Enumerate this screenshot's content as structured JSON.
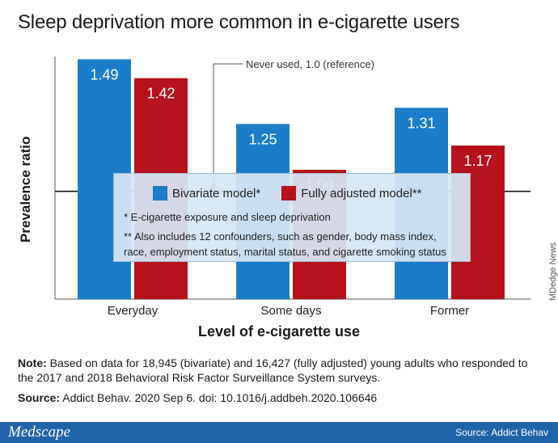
{
  "title": "Sleep deprivation more common in e-cigarette users",
  "credit": "MDedge News",
  "note": {
    "label": "Note:",
    "text": " Based on data for 18,945 (bivariate) and 16,427 (fully adjusted) young adults who responded to the 2017 and 2018 Behavioral Risk Factor Surveillance System surveys."
  },
  "source": {
    "label": "Source:",
    "text": " Addict Behav. 2020 Sep 6. doi: 10.1016/j.addbeh.2020.106646"
  },
  "footer": {
    "logo": "Medscape",
    "source": "Source: Addict Behav"
  },
  "legend": {
    "footnote1": "* E-cigarette exposure and sleep deprivation",
    "footnote2a": "** Also includes 12 confounders, such as gender, body mass index,",
    "footnote2b": "race, employment status, marital status, and cigarette smoking status"
  },
  "colors": {
    "bivariate": "#1b7dc9",
    "adjusted": "#b5121b",
    "footer": "#1f64a8"
  },
  "chart_data": {
    "type": "bar",
    "title": "Sleep deprivation more common in e-cigarette users",
    "xlabel": "Level of e-cigarette use",
    "ylabel": "Prevalence ratio",
    "categories": [
      "Everyday",
      "Some days",
      "Former"
    ],
    "series": [
      {
        "name": "Bivariate model*",
        "values": [
          1.49,
          1.25,
          1.31
        ],
        "labels": [
          "1.49",
          "1.25",
          "1.31"
        ],
        "color": "#1b7dc9"
      },
      {
        "name": "Fully adjusted model**",
        "values": [
          1.42,
          1.08,
          1.17
        ],
        "labels": [
          "1.42",
          "1.08",
          "1.17"
        ],
        "color": "#b5121b"
      }
    ],
    "reference": {
      "value": 1.0,
      "label": "Never used, 1.0 (reference)"
    },
    "ylim": [
      0.6,
      1.5
    ],
    "grid": false,
    "legend_position": "center"
  }
}
